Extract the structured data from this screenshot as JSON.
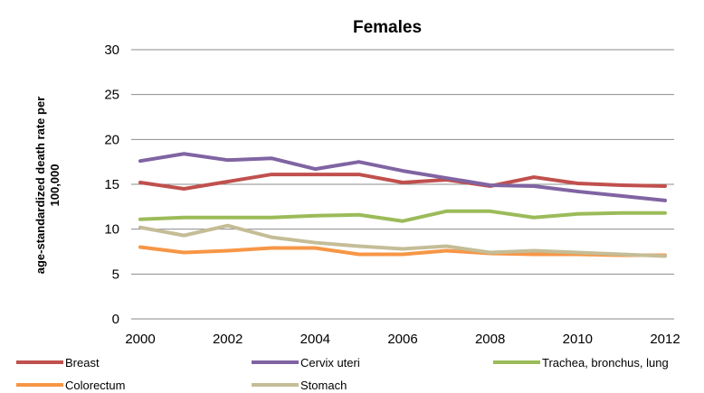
{
  "chart_data": {
    "type": "line",
    "title": "Females",
    "xlabel": "",
    "ylabel_lines": [
      "age-standardized death rate per",
      "100,000"
    ],
    "x": [
      2000,
      2001,
      2002,
      2003,
      2004,
      2005,
      2006,
      2007,
      2008,
      2009,
      2010,
      2011,
      2012
    ],
    "xticks": [
      "2000",
      "2002",
      "2004",
      "2006",
      "2008",
      "2010",
      "2012"
    ],
    "xlim": [
      2000,
      2012
    ],
    "ylim": [
      0,
      30
    ],
    "yticks": [
      "0",
      "5",
      "10",
      "15",
      "20",
      "25",
      "30"
    ],
    "grid": true,
    "legend_position": "bottom",
    "series": [
      {
        "name": "Breast",
        "color": "#c0504d",
        "values": [
          15.2,
          14.5,
          15.3,
          16.1,
          16.1,
          16.1,
          15.2,
          15.5,
          14.8,
          15.8,
          15.1,
          14.9,
          14.8
        ]
      },
      {
        "name": "Cervix uteri",
        "color": "#8064a2",
        "values": [
          17.6,
          18.4,
          17.7,
          17.9,
          16.7,
          17.5,
          16.5,
          15.7,
          14.9,
          14.8,
          14.2,
          13.7,
          13.2
        ]
      },
      {
        "name": "Trachea, bronchus, lung",
        "color": "#9bbb59",
        "values": [
          11.1,
          11.3,
          11.3,
          11.3,
          11.5,
          11.6,
          10.9,
          12.0,
          12.0,
          11.3,
          11.7,
          11.8,
          11.8
        ]
      },
      {
        "name": "Colorectum",
        "color": "#f79646",
        "values": [
          8.0,
          7.4,
          7.6,
          7.9,
          7.9,
          7.2,
          7.2,
          7.6,
          7.3,
          7.2,
          7.2,
          7.1,
          7.1
        ]
      },
      {
        "name": "Stomach",
        "color": "#c4bd97",
        "values": [
          10.2,
          9.3,
          10.4,
          9.1,
          8.5,
          8.1,
          7.8,
          8.1,
          7.4,
          7.6,
          7.4,
          7.2,
          7.0
        ]
      }
    ]
  }
}
